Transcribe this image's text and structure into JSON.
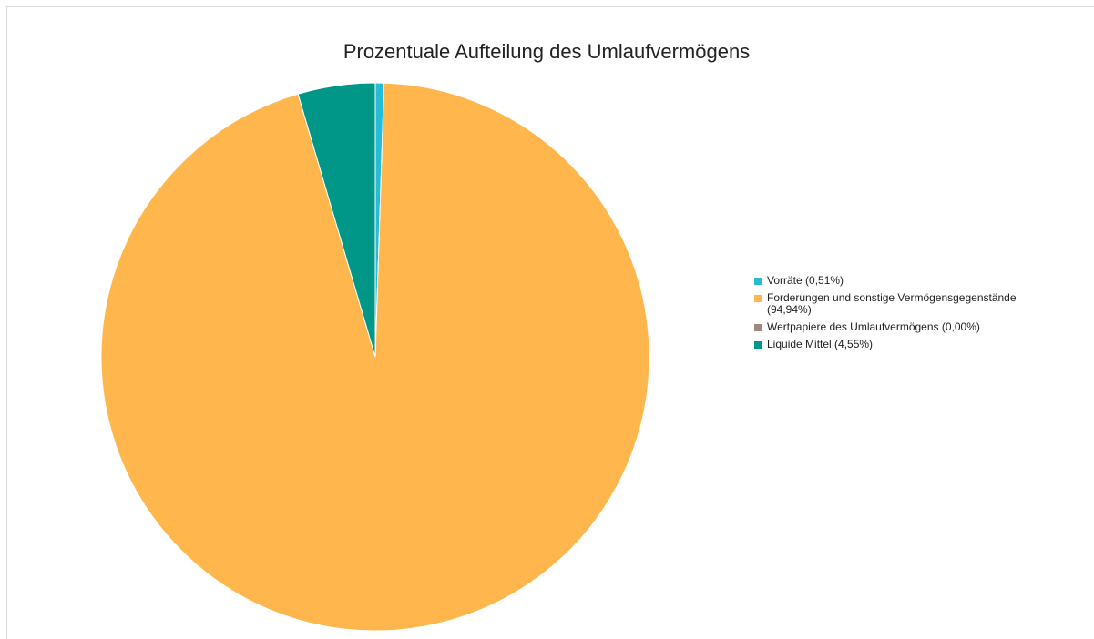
{
  "chart_data": {
    "type": "pie",
    "title": "Prozentuale Aufteilung des Umlaufvermögens",
    "categories": [
      "Vorräte (0,51%)",
      "Forderungen und sonstige Vermögensgegenstände (94,94%)",
      "Wertpapiere des Umlaufvermögens (0,00%)",
      "Liquide Mittel (4,55%)"
    ],
    "values": [
      0.51,
      94.94,
      0,
      4.55
    ],
    "colors": [
      "#26bcd7",
      "#ffb74d",
      "#a1887f",
      "#009688"
    ],
    "legend": "right"
  }
}
